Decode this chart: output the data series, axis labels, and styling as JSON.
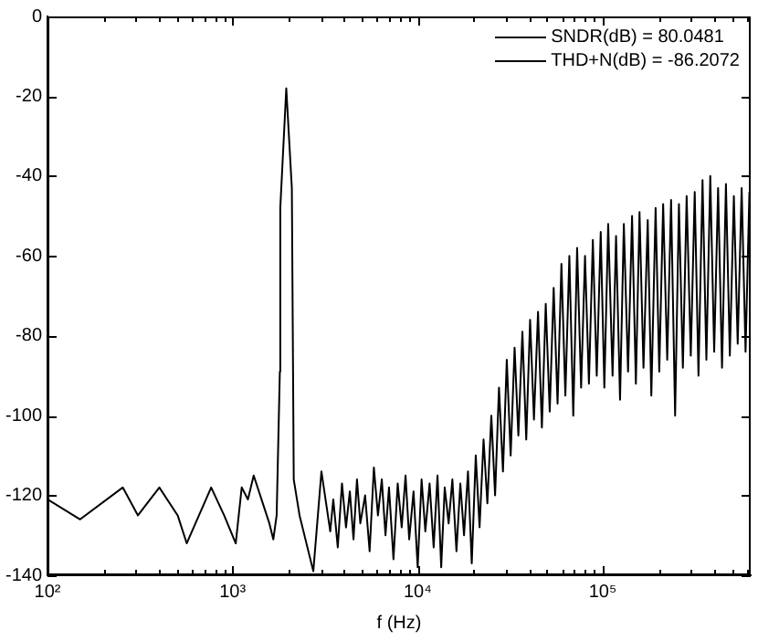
{
  "chart_data": {
    "type": "line",
    "xlabel": "f (Hz)",
    "log": "x",
    "grid": false,
    "marker": "none",
    "line_style": "solid",
    "xlim": [
      100,
      630000
    ],
    "ylim": [
      -140,
      0
    ],
    "xticks": [
      {
        "value": 100,
        "label": "10²"
      },
      {
        "value": 200,
        "label": null
      },
      {
        "value": 300,
        "label": null
      },
      {
        "value": 400,
        "label": null
      },
      {
        "value": 500,
        "label": null
      },
      {
        "value": 600,
        "label": null
      },
      {
        "value": 700,
        "label": null
      },
      {
        "value": 800,
        "label": null
      },
      {
        "value": 900,
        "label": null
      },
      {
        "value": 1000,
        "label": "10³"
      },
      {
        "value": 2000,
        "label": null
      },
      {
        "value": 3000,
        "label": null
      },
      {
        "value": 4000,
        "label": null
      },
      {
        "value": 5000,
        "label": null
      },
      {
        "value": 6000,
        "label": null
      },
      {
        "value": 7000,
        "label": null
      },
      {
        "value": 8000,
        "label": null
      },
      {
        "value": 9000,
        "label": null
      },
      {
        "value": 10000,
        "label": "10⁴"
      },
      {
        "value": 20000,
        "label": null
      },
      {
        "value": 30000,
        "label": null
      },
      {
        "value": 40000,
        "label": null
      },
      {
        "value": 50000,
        "label": null
      },
      {
        "value": 60000,
        "label": null
      },
      {
        "value": 70000,
        "label": null
      },
      {
        "value": 80000,
        "label": null
      },
      {
        "value": 90000,
        "label": null
      },
      {
        "value": 100000,
        "label": "10⁵"
      },
      {
        "value": 200000,
        "label": null
      },
      {
        "value": 300000,
        "label": null
      },
      {
        "value": 400000,
        "label": null
      },
      {
        "value": 500000,
        "label": null
      },
      {
        "value": 600000,
        "label": null
      }
    ],
    "yticks": [
      -140,
      -120,
      -100,
      -80,
      -60,
      -40,
      -20,
      0
    ],
    "annotations": [
      "SNDR(dB) = 80.0481",
      "THD+N(dB) = -86.2072"
    ],
    "series": [
      {
        "color": "#000000",
        "x": [
          100,
          150,
          255,
          308,
          402,
          505,
          565,
          766,
          900,
          1040,
          1120,
          1210,
          1300,
          1580,
          1660,
          1730,
          1800,
          1810,
          1950,
          2090,
          2140,
          2300,
          2730,
          3020,
          3370,
          3500,
          3700,
          3900,
          4100,
          4300,
          4500,
          4700,
          4900,
          5200,
          5500,
          5800,
          6100,
          6400,
          6700,
          7000,
          7400,
          7800,
          8200,
          8600,
          9000,
          9500,
          10000,
          10500,
          11000,
          11600,
          12200,
          12800,
          13400,
          14000,
          14700,
          15400,
          16200,
          17000,
          17800,
          18700,
          19600,
          20600,
          21600,
          22700,
          23800,
          25000,
          26200,
          27500,
          28900,
          30300,
          31800,
          33400,
          35000,
          36800,
          38600,
          40500,
          42500,
          44700,
          46900,
          49200,
          51700,
          54300,
          57000,
          59800,
          62800,
          66000,
          69300,
          72700,
          76400,
          80200,
          84200,
          88400,
          92800,
          97500,
          102000,
          107000,
          113000,
          118000,
          124000,
          130000,
          137000,
          144000,
          151000,
          158000,
          166000,
          175000,
          183000,
          193000,
          202000,
          212000,
          223000,
          234000,
          246000,
          258000,
          271000,
          284000,
          299000,
          314000,
          329000,
          346000,
          363000,
          381000,
          400000,
          420000,
          441000,
          463000,
          486000,
          511000,
          536000,
          563000,
          591000,
          620000
        ],
        "values": [
          -121,
          -126,
          -118,
          -125,
          -118,
          -125,
          -132,
          -118,
          -125,
          -132,
          -118,
          -121,
          -115,
          -127,
          -131,
          -125,
          -89,
          -48,
          -18,
          -43,
          -116,
          -125,
          -139,
          -114,
          -129,
          -121,
          -133,
          -117,
          -128,
          -119,
          -131,
          -116,
          -127,
          -120,
          -134,
          -113,
          -125,
          -116,
          -130,
          -118,
          -136,
          -117,
          -128,
          -115,
          -131,
          -119,
          -138,
          -116,
          -129,
          -117,
          -133,
          -115,
          -138,
          -118,
          -127,
          -116,
          -134,
          -117,
          -130,
          -114,
          -137,
          -110,
          -128,
          -106,
          -122,
          -100,
          -120,
          -93,
          -114,
          -86,
          -110,
          -83,
          -105,
          -79,
          -106,
          -76,
          -101,
          -74,
          -103,
          -72,
          -99,
          -68,
          -97,
          -62,
          -95,
          -60,
          -100,
          -58,
          -93,
          -60,
          -92,
          -56,
          -90,
          -54,
          -93,
          -52,
          -90,
          -55,
          -96,
          -52,
          -89,
          -50,
          -92,
          -49,
          -88,
          -51,
          -95,
          -48,
          -89,
          -47,
          -86,
          -46,
          -100,
          -47,
          -88,
          -45,
          -85,
          -44,
          -90,
          -41,
          -86,
          -40,
          -84,
          -43,
          -88,
          -42,
          -85,
          -45,
          -82,
          -43,
          -84,
          -44
        ]
      }
    ]
  }
}
